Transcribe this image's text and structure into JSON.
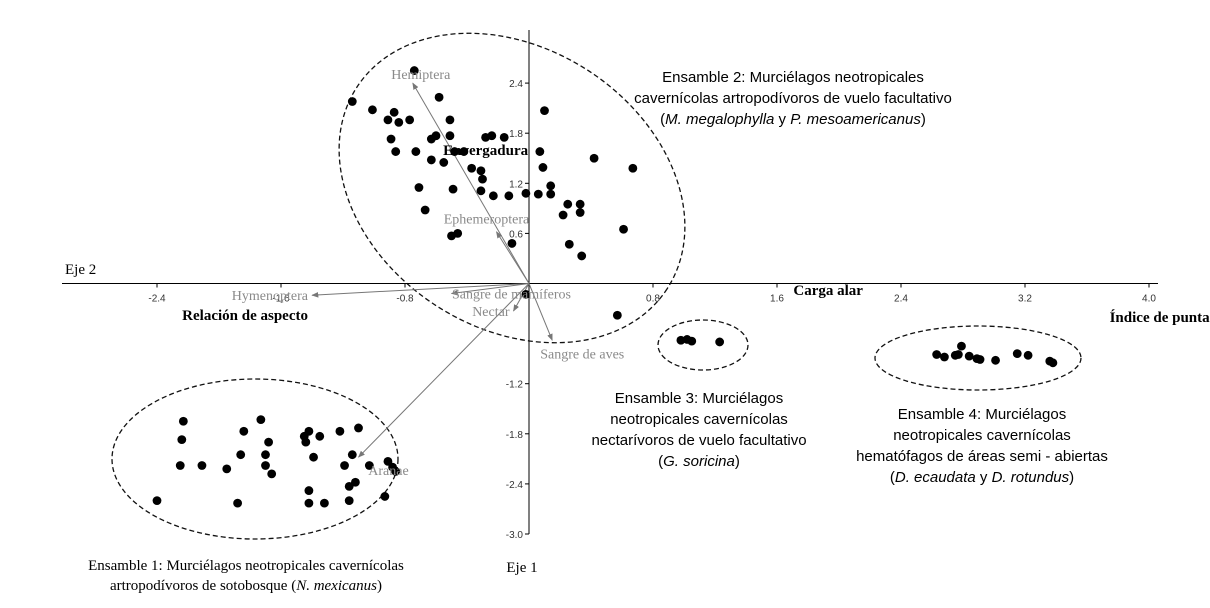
{
  "chart_data": {
    "type": "scatter",
    "x_axis": {
      "label": "Eje 2",
      "range": [
        -3.0,
        4.0
      ],
      "ticks": [
        "-2.4",
        "-1.6",
        "-0.8",
        "0.8",
        "1.6",
        "2.4",
        "3.2",
        "4.0"
      ],
      "tick_values": [
        -2.4,
        -1.6,
        -0.8,
        0.8,
        1.6,
        2.4,
        3.2,
        4.0
      ]
    },
    "y_axis": {
      "label": "Eje 1",
      "range": [
        -3.0,
        2.8
      ],
      "ticks": [
        "2.4",
        "1.8",
        "1.2",
        "0.6",
        "-1.2",
        "-1.8",
        "-2.4",
        "-3.0"
      ],
      "tick_values": [
        2.4,
        1.8,
        1.2,
        0.6,
        -1.2,
        -1.8,
        -2.4,
        -3.0
      ]
    },
    "grid": false,
    "points": [
      [
        -0.74,
        2.55
      ],
      [
        -1.14,
        2.18
      ],
      [
        -1.01,
        2.08
      ],
      [
        -0.58,
        2.23
      ],
      [
        -0.87,
        2.05
      ],
      [
        -0.91,
        1.96
      ],
      [
        -0.84,
        1.93
      ],
      [
        -0.77,
        1.96
      ],
      [
        -0.51,
        1.96
      ],
      [
        -0.89,
        1.73
      ],
      [
        -0.6,
        1.77
      ],
      [
        -0.51,
        1.77
      ],
      [
        -0.63,
        1.73
      ],
      [
        -0.24,
        1.77
      ],
      [
        -0.28,
        1.75
      ],
      [
        -0.16,
        1.75
      ],
      [
        -0.86,
        1.58
      ],
      [
        -0.73,
        1.58
      ],
      [
        -0.48,
        1.58
      ],
      [
        -0.42,
        1.58
      ],
      [
        -0.63,
        1.48
      ],
      [
        -0.55,
        1.45
      ],
      [
        0.07,
        1.58
      ],
      [
        0.42,
        1.5
      ],
      [
        0.67,
        1.38
      ],
      [
        0.09,
        1.39
      ],
      [
        -0.37,
        1.38
      ],
      [
        -0.31,
        1.35
      ],
      [
        -0.3,
        1.25
      ],
      [
        -0.71,
        1.15
      ],
      [
        -0.49,
        1.13
      ],
      [
        -0.31,
        1.11
      ],
      [
        -0.23,
        1.05
      ],
      [
        -0.13,
        1.05
      ],
      [
        -0.02,
        1.08
      ],
      [
        0.06,
        1.07
      ],
      [
        0.14,
        1.07
      ],
      [
        0.14,
        1.17
      ],
      [
        0.25,
        0.95
      ],
      [
        0.33,
        0.95
      ],
      [
        -0.67,
        0.88
      ],
      [
        0.22,
        0.82
      ],
      [
        0.33,
        0.85
      ],
      [
        0.61,
        0.65
      ],
      [
        -0.5,
        0.57
      ],
      [
        -0.46,
        0.6
      ],
      [
        -0.11,
        0.48
      ],
      [
        0.26,
        0.47
      ],
      [
        0.34,
        0.33
      ],
      [
        0.1,
        2.07
      ],
      [
        -0.02,
        -0.13
      ],
      [
        0.57,
        -0.38
      ],
      [
        0.98,
        -0.68
      ],
      [
        1.02,
        -0.67
      ],
      [
        1.05,
        -0.69
      ],
      [
        1.23,
        -0.7
      ],
      [
        2.63,
        -0.85
      ],
      [
        2.68,
        -0.88
      ],
      [
        2.75,
        -0.86
      ],
      [
        2.77,
        -0.85
      ],
      [
        2.79,
        -0.75
      ],
      [
        2.84,
        -0.87
      ],
      [
        2.89,
        -0.9
      ],
      [
        2.91,
        -0.91
      ],
      [
        3.01,
        -0.92
      ],
      [
        3.15,
        -0.84
      ],
      [
        3.22,
        -0.86
      ],
      [
        3.36,
        -0.93
      ],
      [
        3.38,
        -0.95
      ],
      [
        -2.4,
        -2.6
      ],
      [
        -2.23,
        -1.65
      ],
      [
        -2.24,
        -1.87
      ],
      [
        -2.25,
        -2.18
      ],
      [
        -2.11,
        -2.18
      ],
      [
        -1.95,
        -2.22
      ],
      [
        -1.84,
        -1.77
      ],
      [
        -1.86,
        -2.05
      ],
      [
        -1.88,
        -2.63
      ],
      [
        -1.73,
        -1.63
      ],
      [
        -1.68,
        -1.9
      ],
      [
        -1.7,
        -2.05
      ],
      [
        -1.7,
        -2.18
      ],
      [
        -1.66,
        -2.28
      ],
      [
        -1.45,
        -1.83
      ],
      [
        -1.42,
        -1.77
      ],
      [
        -1.44,
        -1.9
      ],
      [
        -1.35,
        -1.83
      ],
      [
        -1.39,
        -2.08
      ],
      [
        -1.42,
        -2.48
      ],
      [
        -1.42,
        -2.63
      ],
      [
        -1.32,
        -2.63
      ],
      [
        -1.22,
        -1.77
      ],
      [
        -1.19,
        -2.18
      ],
      [
        -1.14,
        -2.05
      ],
      [
        -1.1,
        -1.73
      ],
      [
        -1.16,
        -2.6
      ],
      [
        -1.03,
        -2.18
      ],
      [
        -1.12,
        -2.38
      ],
      [
        -0.91,
        -2.13
      ],
      [
        -0.88,
        -2.2
      ],
      [
        -0.86,
        -2.25
      ],
      [
        -1.16,
        -2.43
      ],
      [
        -0.93,
        -2.55
      ]
    ],
    "vectors": [
      {
        "label": "Hemiptera",
        "x": -0.75,
        "y": 2.4,
        "label_pos": "above-left",
        "emphasis": false
      },
      {
        "label": "Envergadura",
        "x": -0.58,
        "y": 1.6,
        "label_pos": "right",
        "emphasis": true
      },
      {
        "label": "Ephemeroptera",
        "x": -0.21,
        "y": 0.62,
        "label_pos": "above",
        "emphasis": false
      },
      {
        "label": "Hymenoptera",
        "x": -1.4,
        "y": -0.14,
        "label_pos": "left",
        "emphasis": false
      },
      {
        "label": "Relación de aspecto",
        "x": -1.4,
        "y": -0.38,
        "label_pos": "left",
        "emphasis": true
      },
      {
        "label": "Sangre de mamíferos",
        "x": -0.5,
        "y": -0.12,
        "label_pos": "center",
        "emphasis": false
      },
      {
        "label": "Nectar",
        "x": -0.1,
        "y": -0.33,
        "label_pos": "left",
        "emphasis": false
      },
      {
        "label": "Sangre de aves",
        "x": 0.15,
        "y": -0.68,
        "label_pos": "below",
        "emphasis": false
      },
      {
        "label": "Aranae",
        "x": -1.1,
        "y": -2.08,
        "label_pos": "below",
        "emphasis": false
      },
      {
        "label": "Carga alar",
        "x": 1.68,
        "y": -0.08,
        "label_pos": "right",
        "emphasis": true
      },
      {
        "label": "Índice de punta",
        "x": 3.72,
        "y": -0.4,
        "label_pos": "right",
        "emphasis": true
      }
    ],
    "groups": [
      {
        "lines": [
          [
            {
              "t": "Ensamble 2: Murciélagos neotropicales",
              "i": false
            }
          ],
          [
            {
              "t": "cavernícolas artropodívoros de vuelo facultativo",
              "i": false
            }
          ],
          [
            {
              "t": "(",
              "i": false
            },
            {
              "t": "M. megalophylla",
              "i": true
            },
            {
              "t": " y ",
              "i": false
            },
            {
              "t": "P. mesoamericanus",
              "i": true
            },
            {
              "t": ")",
              "i": false
            }
          ]
        ],
        "font": "sans"
      },
      {
        "lines": [
          [
            {
              "t": "Ensamble 3: Murciélagos",
              "i": false
            }
          ],
          [
            {
              "t": "neotropicales cavernícolas",
              "i": false
            }
          ],
          [
            {
              "t": "nectarívoros de vuelo facultativo",
              "i": false
            }
          ],
          [
            {
              "t": "(",
              "i": false
            },
            {
              "t": "G. soricina",
              "i": true
            },
            {
              "t": ")",
              "i": false
            }
          ]
        ],
        "font": "sans"
      },
      {
        "lines": [
          [
            {
              "t": "Ensamble 4: Murciélagos",
              "i": false
            }
          ],
          [
            {
              "t": "neotropicales cavernícolas",
              "i": false
            }
          ],
          [
            {
              "t": "hematófagos de áreas semi - abiertas",
              "i": false
            }
          ],
          [
            {
              "t": "(",
              "i": false
            },
            {
              "t": "D. ecaudata",
              "i": true
            },
            {
              "t": " y ",
              "i": false
            },
            {
              "t": "D. rotundus",
              "i": true
            },
            {
              "t": ")",
              "i": false
            }
          ]
        ],
        "font": "sans"
      },
      {
        "lines": [
          [
            {
              "t": "Ensamble 1: Murciélagos  neotropicales  cavernícolas",
              "i": false
            }
          ],
          [
            {
              "t": "artropodívoros de sotobosque (",
              "i": false
            },
            {
              "t": "N. mexicanus",
              "i": true
            },
            {
              "t": ")",
              "i": false
            }
          ]
        ],
        "font": "serif"
      }
    ]
  }
}
